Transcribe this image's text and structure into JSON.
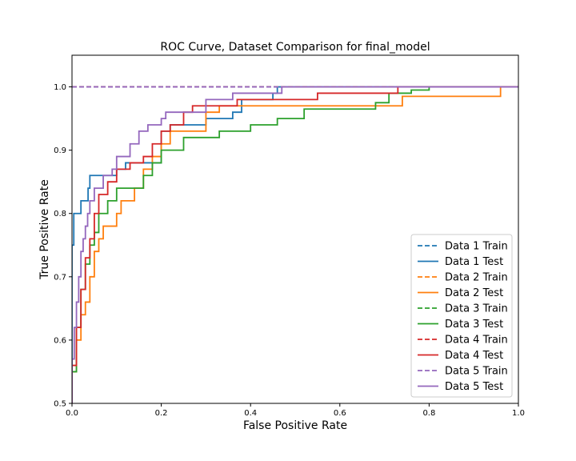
{
  "chart_data": {
    "type": "line",
    "title": "ROC Curve, Dataset Comparison for final_model",
    "xlabel": "False Positive Rate",
    "ylabel": "True Positive Rate",
    "xlim": [
      0.0,
      1.0
    ],
    "ylim": [
      0.5,
      1.05
    ],
    "xticks": [
      0.0,
      0.2,
      0.4,
      0.6,
      0.8,
      1.0
    ],
    "xtick_labels": [
      "0.0",
      "0.2",
      "0.4",
      "0.6",
      "0.8",
      "1.0"
    ],
    "yticks": [
      0.5,
      0.6,
      0.7,
      0.8,
      0.9,
      1.0
    ],
    "ytick_labels": [
      "0.5",
      "0.6",
      "0.7",
      "0.8",
      "0.9",
      "1.0"
    ],
    "grid": false,
    "legend_position": "lower-right",
    "series": [
      {
        "name": "Data 1 Train",
        "color": "#1f77b4",
        "dash": true,
        "x": [
          0.0,
          1.0
        ],
        "y": [
          1.0,
          1.0
        ]
      },
      {
        "name": "Data 1 Test",
        "color": "#1f77b4",
        "dash": false,
        "x": [
          0.0,
          0.0,
          0.0,
          0.004,
          0.004,
          0.02,
          0.02,
          0.036,
          0.036,
          0.04,
          0.04,
          0.1,
          0.1,
          0.12,
          0.12,
          0.2,
          0.2,
          0.22,
          0.22,
          0.3,
          0.3,
          0.36,
          0.36,
          0.38,
          0.38,
          0.45,
          0.45,
          0.46,
          0.46,
          1.0
        ],
        "y": [
          0.5,
          0.72,
          0.75,
          0.75,
          0.8,
          0.8,
          0.82,
          0.82,
          0.84,
          0.84,
          0.86,
          0.86,
          0.87,
          0.87,
          0.88,
          0.88,
          0.93,
          0.93,
          0.94,
          0.94,
          0.95,
          0.95,
          0.96,
          0.96,
          0.98,
          0.98,
          0.99,
          0.99,
          1.0,
          1.0
        ]
      },
      {
        "name": "Data 2 Train",
        "color": "#ff7f0e",
        "dash": true,
        "x": [
          0.0,
          1.0
        ],
        "y": [
          1.0,
          1.0
        ]
      },
      {
        "name": "Data 2 Test",
        "color": "#ff7f0e",
        "dash": false,
        "x": [
          0.0,
          0.0,
          0.01,
          0.01,
          0.02,
          0.02,
          0.03,
          0.03,
          0.04,
          0.04,
          0.05,
          0.05,
          0.06,
          0.06,
          0.07,
          0.07,
          0.1,
          0.1,
          0.11,
          0.11,
          0.14,
          0.14,
          0.16,
          0.16,
          0.18,
          0.18,
          0.2,
          0.2,
          0.22,
          0.22,
          0.25,
          0.25,
          0.3,
          0.3,
          0.33,
          0.33,
          0.38,
          0.38,
          0.74,
          0.74,
          0.96,
          0.96,
          1.0
        ],
        "y": [
          0.5,
          0.55,
          0.55,
          0.6,
          0.6,
          0.64,
          0.64,
          0.66,
          0.66,
          0.7,
          0.7,
          0.74,
          0.74,
          0.76,
          0.76,
          0.78,
          0.78,
          0.8,
          0.8,
          0.82,
          0.82,
          0.84,
          0.84,
          0.87,
          0.87,
          0.89,
          0.89,
          0.91,
          0.91,
          0.93,
          0.93,
          0.93,
          0.93,
          0.96,
          0.96,
          0.97,
          0.97,
          0.97,
          0.97,
          0.985,
          0.985,
          1.0,
          1.0
        ]
      },
      {
        "name": "Data 3 Train",
        "color": "#2ca02c",
        "dash": true,
        "x": [
          0.0,
          1.0
        ],
        "y": [
          1.0,
          1.0
        ]
      },
      {
        "name": "Data 3 Test",
        "color": "#2ca02c",
        "dash": false,
        "x": [
          0.0,
          0.0,
          0.01,
          0.01,
          0.02,
          0.02,
          0.03,
          0.03,
          0.04,
          0.04,
          0.05,
          0.05,
          0.06,
          0.06,
          0.08,
          0.08,
          0.1,
          0.1,
          0.12,
          0.12,
          0.16,
          0.16,
          0.18,
          0.18,
          0.2,
          0.2,
          0.25,
          0.25,
          0.33,
          0.33,
          0.4,
          0.4,
          0.46,
          0.46,
          0.52,
          0.52,
          0.68,
          0.68,
          0.71,
          0.71,
          0.76,
          0.76,
          0.8,
          0.8,
          1.0
        ],
        "y": [
          0.5,
          0.55,
          0.55,
          0.62,
          0.62,
          0.68,
          0.68,
          0.72,
          0.72,
          0.75,
          0.75,
          0.77,
          0.77,
          0.8,
          0.8,
          0.82,
          0.82,
          0.84,
          0.84,
          0.84,
          0.84,
          0.86,
          0.86,
          0.88,
          0.88,
          0.9,
          0.9,
          0.92,
          0.92,
          0.93,
          0.93,
          0.94,
          0.94,
          0.95,
          0.95,
          0.965,
          0.965,
          0.975,
          0.975,
          0.99,
          0.99,
          0.995,
          0.995,
          1.0,
          1.0
        ]
      },
      {
        "name": "Data 4 Train",
        "color": "#d62728",
        "dash": true,
        "x": [
          0.0,
          1.0
        ],
        "y": [
          1.0,
          1.0
        ]
      },
      {
        "name": "Data 4 Test",
        "color": "#d62728",
        "dash": false,
        "x": [
          0.0,
          0.0,
          0.01,
          0.01,
          0.02,
          0.02,
          0.03,
          0.03,
          0.04,
          0.04,
          0.05,
          0.05,
          0.06,
          0.06,
          0.08,
          0.08,
          0.1,
          0.1,
          0.13,
          0.13,
          0.16,
          0.16,
          0.18,
          0.18,
          0.2,
          0.2,
          0.22,
          0.22,
          0.25,
          0.25,
          0.27,
          0.27,
          0.37,
          0.37,
          0.52,
          0.52,
          0.55,
          0.55,
          0.73,
          0.73,
          1.0
        ],
        "y": [
          0.5,
          0.56,
          0.56,
          0.62,
          0.62,
          0.68,
          0.68,
          0.73,
          0.73,
          0.76,
          0.76,
          0.8,
          0.8,
          0.83,
          0.83,
          0.85,
          0.85,
          0.87,
          0.87,
          0.88,
          0.88,
          0.89,
          0.89,
          0.91,
          0.91,
          0.93,
          0.93,
          0.94,
          0.94,
          0.96,
          0.96,
          0.97,
          0.97,
          0.98,
          0.98,
          0.98,
          0.98,
          0.99,
          0.99,
          1.0,
          1.0
        ]
      },
      {
        "name": "Data 5 Train",
        "color": "#9467bd",
        "dash": true,
        "x": [
          0.0,
          1.0
        ],
        "y": [
          1.0,
          1.0
        ]
      },
      {
        "name": "Data 5 Test",
        "color": "#9467bd",
        "dash": false,
        "x": [
          0.0,
          0.0,
          0.005,
          0.005,
          0.01,
          0.01,
          0.015,
          0.015,
          0.02,
          0.02,
          0.025,
          0.025,
          0.03,
          0.03,
          0.035,
          0.035,
          0.04,
          0.04,
          0.05,
          0.05,
          0.07,
          0.07,
          0.09,
          0.09,
          0.1,
          0.1,
          0.13,
          0.13,
          0.15,
          0.15,
          0.17,
          0.17,
          0.2,
          0.2,
          0.21,
          0.21,
          0.3,
          0.3,
          0.36,
          0.36,
          0.47,
          0.47,
          1.0
        ],
        "y": [
          0.5,
          0.57,
          0.57,
          0.62,
          0.62,
          0.66,
          0.66,
          0.7,
          0.7,
          0.74,
          0.74,
          0.76,
          0.76,
          0.78,
          0.78,
          0.8,
          0.8,
          0.82,
          0.82,
          0.84,
          0.84,
          0.86,
          0.86,
          0.87,
          0.87,
          0.89,
          0.89,
          0.91,
          0.91,
          0.93,
          0.93,
          0.94,
          0.94,
          0.95,
          0.95,
          0.96,
          0.96,
          0.98,
          0.98,
          0.99,
          0.99,
          1.0,
          1.0
        ]
      }
    ]
  }
}
